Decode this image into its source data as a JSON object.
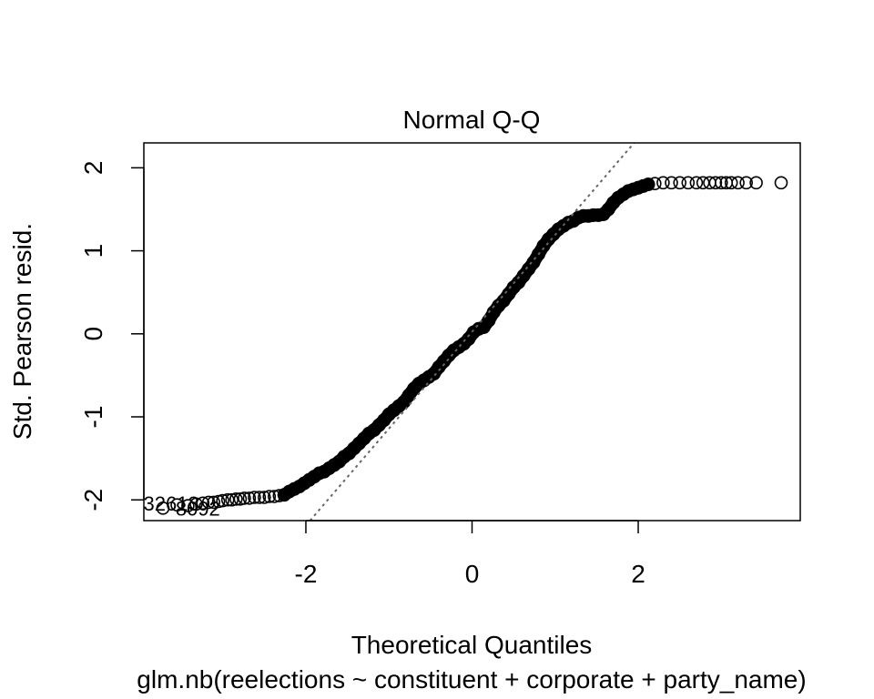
{
  "chart_data": {
    "type": "scatter",
    "title": "Normal Q-Q",
    "subtitle": "glm.nb(reelections ~ constituent + corporate + party_name)",
    "xlabel": "Theoretical Quantiles",
    "ylabel": "Std. Pearson resid.",
    "xlim": [
      -3.95,
      3.95
    ],
    "ylim": [
      -2.25,
      2.3
    ],
    "x_ticks": [
      -2,
      0,
      2
    ],
    "y_ticks": [
      -2,
      -1,
      0,
      1,
      2
    ],
    "grid": false,
    "legend": "none",
    "reference_line": {
      "style": "dotted",
      "color": "#666666",
      "points": [
        [
          -1.95,
          -2.25
        ],
        [
          1.95,
          2.3
        ]
      ]
    },
    "point_labels": [
      {
        "text": "32613",
        "x": -3.62,
        "y": -2.04
      },
      {
        "text": "8092",
        "x": -3.3,
        "y": -2.1
      }
    ],
    "points": [
      [
        -3.72,
        -2.1
      ],
      [
        -3.55,
        -2.06
      ],
      [
        -3.42,
        -2.07
      ],
      [
        -3.32,
        -2.05
      ],
      [
        -3.24,
        -2.04
      ],
      [
        -3.17,
        -2.03
      ],
      [
        -3.11,
        -2.03
      ],
      [
        -3.05,
        -2.02
      ],
      [
        -3.0,
        -2.01
      ],
      [
        -2.94,
        -2.0
      ],
      [
        -2.89,
        -2.0
      ],
      [
        -2.84,
        -1.99
      ],
      [
        -2.79,
        -1.99
      ],
      [
        -2.74,
        -1.98
      ],
      [
        -2.68,
        -1.98
      ],
      [
        -2.62,
        -1.97
      ],
      [
        -2.56,
        -1.97
      ],
      [
        -2.5,
        -1.97
      ],
      [
        -2.44,
        -1.96
      ],
      [
        -2.38,
        -1.96
      ],
      [
        -2.32,
        -1.95
      ],
      [
        -2.26,
        -1.94
      ],
      [
        -2.2,
        -1.9
      ],
      [
        -2.14,
        -1.87
      ],
      [
        -2.08,
        -1.84
      ],
      [
        -2.02,
        -1.8
      ],
      [
        -1.96,
        -1.76
      ],
      [
        -1.9,
        -1.72
      ],
      [
        -1.84,
        -1.68
      ],
      [
        -1.78,
        -1.66
      ],
      [
        -1.72,
        -1.62
      ],
      [
        -1.66,
        -1.58
      ],
      [
        -1.6,
        -1.54
      ],
      [
        -1.54,
        -1.48
      ],
      [
        -1.48,
        -1.44
      ],
      [
        -1.42,
        -1.38
      ],
      [
        -1.36,
        -1.32
      ],
      [
        -1.3,
        -1.26
      ],
      [
        -1.24,
        -1.2
      ],
      [
        -1.18,
        -1.16
      ],
      [
        -1.12,
        -1.1
      ],
      [
        -1.06,
        -1.04
      ],
      [
        -1.0,
        -0.97
      ],
      [
        -0.94,
        -0.92
      ],
      [
        -0.88,
        -0.87
      ],
      [
        -0.82,
        -0.82
      ],
      [
        -0.76,
        -0.74
      ],
      [
        -0.7,
        -0.66
      ],
      [
        -0.64,
        -0.6
      ],
      [
        -0.58,
        -0.56
      ],
      [
        -0.52,
        -0.52
      ],
      [
        -0.46,
        -0.48
      ],
      [
        -0.4,
        -0.4
      ],
      [
        -0.34,
        -0.33
      ],
      [
        -0.28,
        -0.26
      ],
      [
        -0.22,
        -0.2
      ],
      [
        -0.16,
        -0.16
      ],
      [
        -0.1,
        -0.12
      ],
      [
        -0.04,
        -0.06
      ],
      [
        0.02,
        0.02
      ],
      [
        0.08,
        0.06
      ],
      [
        0.14,
        0.08
      ],
      [
        0.2,
        0.16
      ],
      [
        0.26,
        0.26
      ],
      [
        0.32,
        0.34
      ],
      [
        0.38,
        0.4
      ],
      [
        0.44,
        0.48
      ],
      [
        0.5,
        0.56
      ],
      [
        0.56,
        0.62
      ],
      [
        0.62,
        0.7
      ],
      [
        0.68,
        0.78
      ],
      [
        0.74,
        0.86
      ],
      [
        0.8,
        0.96
      ],
      [
        0.86,
        1.06
      ],
      [
        0.92,
        1.14
      ],
      [
        0.98,
        1.2
      ],
      [
        1.04,
        1.26
      ],
      [
        1.1,
        1.3
      ],
      [
        1.16,
        1.34
      ],
      [
        1.22,
        1.36
      ],
      [
        1.28,
        1.4
      ],
      [
        1.34,
        1.42
      ],
      [
        1.4,
        1.42
      ],
      [
        1.46,
        1.43
      ],
      [
        1.52,
        1.43
      ],
      [
        1.58,
        1.44
      ],
      [
        1.64,
        1.5
      ],
      [
        1.7,
        1.58
      ],
      [
        1.76,
        1.64
      ],
      [
        1.82,
        1.68
      ],
      [
        1.88,
        1.72
      ],
      [
        1.94,
        1.74
      ],
      [
        2.0,
        1.76
      ],
      [
        2.06,
        1.78
      ],
      [
        2.12,
        1.8
      ],
      [
        2.2,
        1.81
      ],
      [
        2.3,
        1.82
      ],
      [
        2.4,
        1.82
      ],
      [
        2.5,
        1.82
      ],
      [
        2.6,
        1.82
      ],
      [
        2.7,
        1.82
      ],
      [
        2.78,
        1.82
      ],
      [
        2.86,
        1.82
      ],
      [
        2.93,
        1.82
      ],
      [
        3.0,
        1.82
      ],
      [
        3.06,
        1.82
      ],
      [
        3.12,
        1.82
      ],
      [
        3.2,
        1.82
      ],
      [
        3.3,
        1.82
      ],
      [
        3.42,
        1.82
      ],
      [
        3.72,
        1.82
      ]
    ]
  }
}
